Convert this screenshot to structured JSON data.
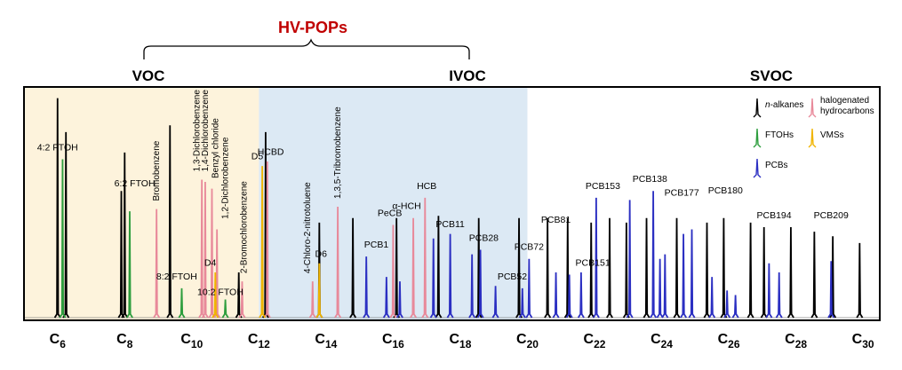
{
  "header": {
    "group_title": "HV-POPs",
    "regions": [
      "VOC",
      "IVOC",
      "SVOC"
    ]
  },
  "colors": {
    "alkanes": "#000000",
    "halogenated": "#e8899a",
    "ftoh": "#2e9e3e",
    "vms": "#f0b400",
    "pcb": "#2b2fc2",
    "voc_bg": "#fdf3dc",
    "ivoc_bg": "#dce9f4",
    "title_red": "#c00000"
  },
  "legend": {
    "items": [
      {
        "label": "n-alkanes",
        "color_key": "alkanes"
      },
      {
        "label": "halogenated hydrocarbons",
        "color_key": "halogenated"
      },
      {
        "label": "FTOHs",
        "color_key": "ftoh"
      },
      {
        "label": "VMSs",
        "color_key": "vms"
      },
      {
        "label": "PCBs",
        "color_key": "pcb"
      }
    ]
  },
  "chart_data": {
    "type": "line",
    "x_axis": {
      "ticks": [
        {
          "label": "C6",
          "x": 6
        },
        {
          "label": "C8",
          "x": 8
        },
        {
          "label": "C10",
          "x": 10
        },
        {
          "label": "C12",
          "x": 12
        },
        {
          "label": "C14",
          "x": 14
        },
        {
          "label": "C16",
          "x": 16
        },
        {
          "label": "C18",
          "x": 18
        },
        {
          "label": "C20",
          "x": 20
        },
        {
          "label": "C22",
          "x": 22
        },
        {
          "label": "C24",
          "x": 24
        },
        {
          "label": "C26",
          "x": 26
        },
        {
          "label": "C28",
          "x": 28
        },
        {
          "label": "C30",
          "x": 30
        }
      ]
    },
    "regions": [
      {
        "label": "VOC",
        "start": 5.0,
        "end": 12.0
      },
      {
        "label": "IVOC",
        "start": 12.0,
        "end": 20.0
      },
      {
        "label": "SVOC",
        "start": 20.0,
        "end": 30.5
      }
    ],
    "series": [
      {
        "name": "n-alkanes",
        "color_key": "alkanes",
        "peaks": [
          {
            "x": 6.0,
            "h": 0.97
          },
          {
            "x": 6.25,
            "h": 0.82
          },
          {
            "x": 7.9,
            "h": 0.56
          },
          {
            "x": 8.0,
            "h": 0.73
          },
          {
            "x": 9.35,
            "h": 0.85
          },
          {
            "x": 11.4,
            "h": 0.2
          },
          {
            "x": 12.2,
            "h": 0.82
          },
          {
            "x": 13.8,
            "h": 0.42
          },
          {
            "x": 14.8,
            "h": 0.44
          },
          {
            "x": 16.1,
            "h": 0.44
          },
          {
            "x": 17.35,
            "h": 0.45
          },
          {
            "x": 18.55,
            "h": 0.44
          },
          {
            "x": 19.75,
            "h": 0.44
          },
          {
            "x": 20.6,
            "h": 0.44
          },
          {
            "x": 21.2,
            "h": 0.44
          },
          {
            "x": 21.9,
            "h": 0.42
          },
          {
            "x": 22.45,
            "h": 0.44
          },
          {
            "x": 22.95,
            "h": 0.42
          },
          {
            "x": 23.55,
            "h": 0.44
          },
          {
            "x": 24.45,
            "h": 0.44
          },
          {
            "x": 25.35,
            "h": 0.42
          },
          {
            "x": 25.85,
            "h": 0.44
          },
          {
            "x": 26.65,
            "h": 0.42
          },
          {
            "x": 27.05,
            "h": 0.4
          },
          {
            "x": 27.85,
            "h": 0.4
          },
          {
            "x": 28.55,
            "h": 0.38
          },
          {
            "x": 29.1,
            "h": 0.36
          },
          {
            "x": 29.9,
            "h": 0.33
          }
        ]
      },
      {
        "name": "halogenated hydrocarbons",
        "color_key": "halogenated",
        "peaks": [
          {
            "x": 8.95,
            "h": 0.48
          },
          {
            "x": 10.3,
            "h": 0.61
          },
          {
            "x": 10.4,
            "h": 0.6
          },
          {
            "x": 10.6,
            "h": 0.57
          },
          {
            "x": 10.75,
            "h": 0.39
          },
          {
            "x": 11.5,
            "h": 0.16
          },
          {
            "x": 12.25,
            "h": 0.69
          },
          {
            "x": 13.6,
            "h": 0.16
          },
          {
            "x": 14.35,
            "h": 0.49
          },
          {
            "x": 16.0,
            "h": 0.41
          },
          {
            "x": 16.6,
            "h": 0.44
          },
          {
            "x": 16.95,
            "h": 0.53
          }
        ]
      },
      {
        "name": "FTOHs",
        "color_key": "ftoh",
        "peaks": [
          {
            "x": 6.15,
            "h": 0.7
          },
          {
            "x": 8.15,
            "h": 0.47
          },
          {
            "x": 9.7,
            "h": 0.13
          },
          {
            "x": 11.0,
            "h": 0.08
          }
        ]
      },
      {
        "name": "VMSs",
        "color_key": "vms",
        "peaks": [
          {
            "x": 10.7,
            "h": 0.2
          },
          {
            "x": 12.1,
            "h": 0.67
          },
          {
            "x": 13.8,
            "h": 0.24
          }
        ]
      },
      {
        "name": "PCBs",
        "color_key": "pcb",
        "peaks": [
          {
            "x": 15.2,
            "h": 0.27
          },
          {
            "x": 15.8,
            "h": 0.18
          },
          {
            "x": 16.2,
            "h": 0.16
          },
          {
            "x": 17.2,
            "h": 0.35
          },
          {
            "x": 17.7,
            "h": 0.37
          },
          {
            "x": 18.35,
            "h": 0.28
          },
          {
            "x": 18.6,
            "h": 0.3
          },
          {
            "x": 19.05,
            "h": 0.14
          },
          {
            "x": 19.85,
            "h": 0.13
          },
          {
            "x": 20.05,
            "h": 0.26
          },
          {
            "x": 20.85,
            "h": 0.2
          },
          {
            "x": 21.25,
            "h": 0.19
          },
          {
            "x": 21.6,
            "h": 0.2
          },
          {
            "x": 22.05,
            "h": 0.53
          },
          {
            "x": 23.05,
            "h": 0.52
          },
          {
            "x": 23.75,
            "h": 0.56
          },
          {
            "x": 23.95,
            "h": 0.26
          },
          {
            "x": 24.1,
            "h": 0.28
          },
          {
            "x": 24.65,
            "h": 0.37
          },
          {
            "x": 24.9,
            "h": 0.39
          },
          {
            "x": 25.5,
            "h": 0.18
          },
          {
            "x": 25.95,
            "h": 0.12
          },
          {
            "x": 26.2,
            "h": 0.1
          },
          {
            "x": 27.2,
            "h": 0.24
          },
          {
            "x": 27.5,
            "h": 0.2
          },
          {
            "x": 29.05,
            "h": 0.25
          }
        ]
      }
    ],
    "annotations": [
      {
        "text": "4:2 FTOH",
        "x": 6.0,
        "h": 0.72,
        "rotate": false
      },
      {
        "text": "6:2 FTOH",
        "x": 8.3,
        "h": 0.56,
        "rotate": false
      },
      {
        "text": "Bromobenzene",
        "x": 8.95,
        "h": 0.5,
        "rotate": true
      },
      {
        "text": "8:2 FTOH",
        "x": 9.55,
        "h": 0.15,
        "rotate": false
      },
      {
        "text": "1,3-Dichlorobenzene",
        "x": 10.15,
        "h": 0.63,
        "rotate": true
      },
      {
        "text": "1,4-Dichlorobenzene",
        "x": 10.4,
        "h": 0.63,
        "rotate": true
      },
      {
        "text": "Benzyl chloride",
        "x": 10.7,
        "h": 0.6,
        "rotate": true
      },
      {
        "text": "1,2-Dichlorobenzene",
        "x": 11.0,
        "h": 0.42,
        "rotate": true
      },
      {
        "text": "D4",
        "x": 10.55,
        "h": 0.21,
        "rotate": false
      },
      {
        "text": "10:2 FTOH",
        "x": 10.85,
        "h": 0.08,
        "rotate": false
      },
      {
        "text": "2-Bromochlorobenzene",
        "x": 11.55,
        "h": 0.18,
        "rotate": true
      },
      {
        "text": "D5",
        "x": 11.95,
        "h": 0.68,
        "rotate": false
      },
      {
        "text": "HCBD",
        "x": 12.35,
        "h": 0.7,
        "rotate": false
      },
      {
        "text": "4-Chloro-2-nitrotoluene",
        "x": 13.45,
        "h": 0.18,
        "rotate": true
      },
      {
        "text": "D6",
        "x": 13.85,
        "h": 0.25,
        "rotate": false
      },
      {
        "text": "1,3,5-Tribromobenzene",
        "x": 14.35,
        "h": 0.51,
        "rotate": true
      },
      {
        "text": "PeCB",
        "x": 15.9,
        "h": 0.43,
        "rotate": false
      },
      {
        "text": "PCB1",
        "x": 15.5,
        "h": 0.29,
        "rotate": false
      },
      {
        "text": "α-HCH",
        "x": 16.4,
        "h": 0.46,
        "rotate": false
      },
      {
        "text": "HCB",
        "x": 17.0,
        "h": 0.55,
        "rotate": false
      },
      {
        "text": "PCB11",
        "x": 17.7,
        "h": 0.38,
        "rotate": false
      },
      {
        "text": "PCB28",
        "x": 18.7,
        "h": 0.32,
        "rotate": false
      },
      {
        "text": "PCB52",
        "x": 19.55,
        "h": 0.15,
        "rotate": false
      },
      {
        "text": "PCB72",
        "x": 20.05,
        "h": 0.28,
        "rotate": false
      },
      {
        "text": "PCB81",
        "x": 20.85,
        "h": 0.4,
        "rotate": false
      },
      {
        "text": "PCB151",
        "x": 21.95,
        "h": 0.21,
        "rotate": false
      },
      {
        "text": "PCB153",
        "x": 22.25,
        "h": 0.55,
        "rotate": false
      },
      {
        "text": "PCB138",
        "x": 23.65,
        "h": 0.58,
        "rotate": false
      },
      {
        "text": "PCB177",
        "x": 24.6,
        "h": 0.52,
        "rotate": false
      },
      {
        "text": "PCB180",
        "x": 25.9,
        "h": 0.53,
        "rotate": false
      },
      {
        "text": "PCB194",
        "x": 27.35,
        "h": 0.42,
        "rotate": false
      },
      {
        "text": "PCB209",
        "x": 29.05,
        "h": 0.42,
        "rotate": false
      }
    ]
  }
}
